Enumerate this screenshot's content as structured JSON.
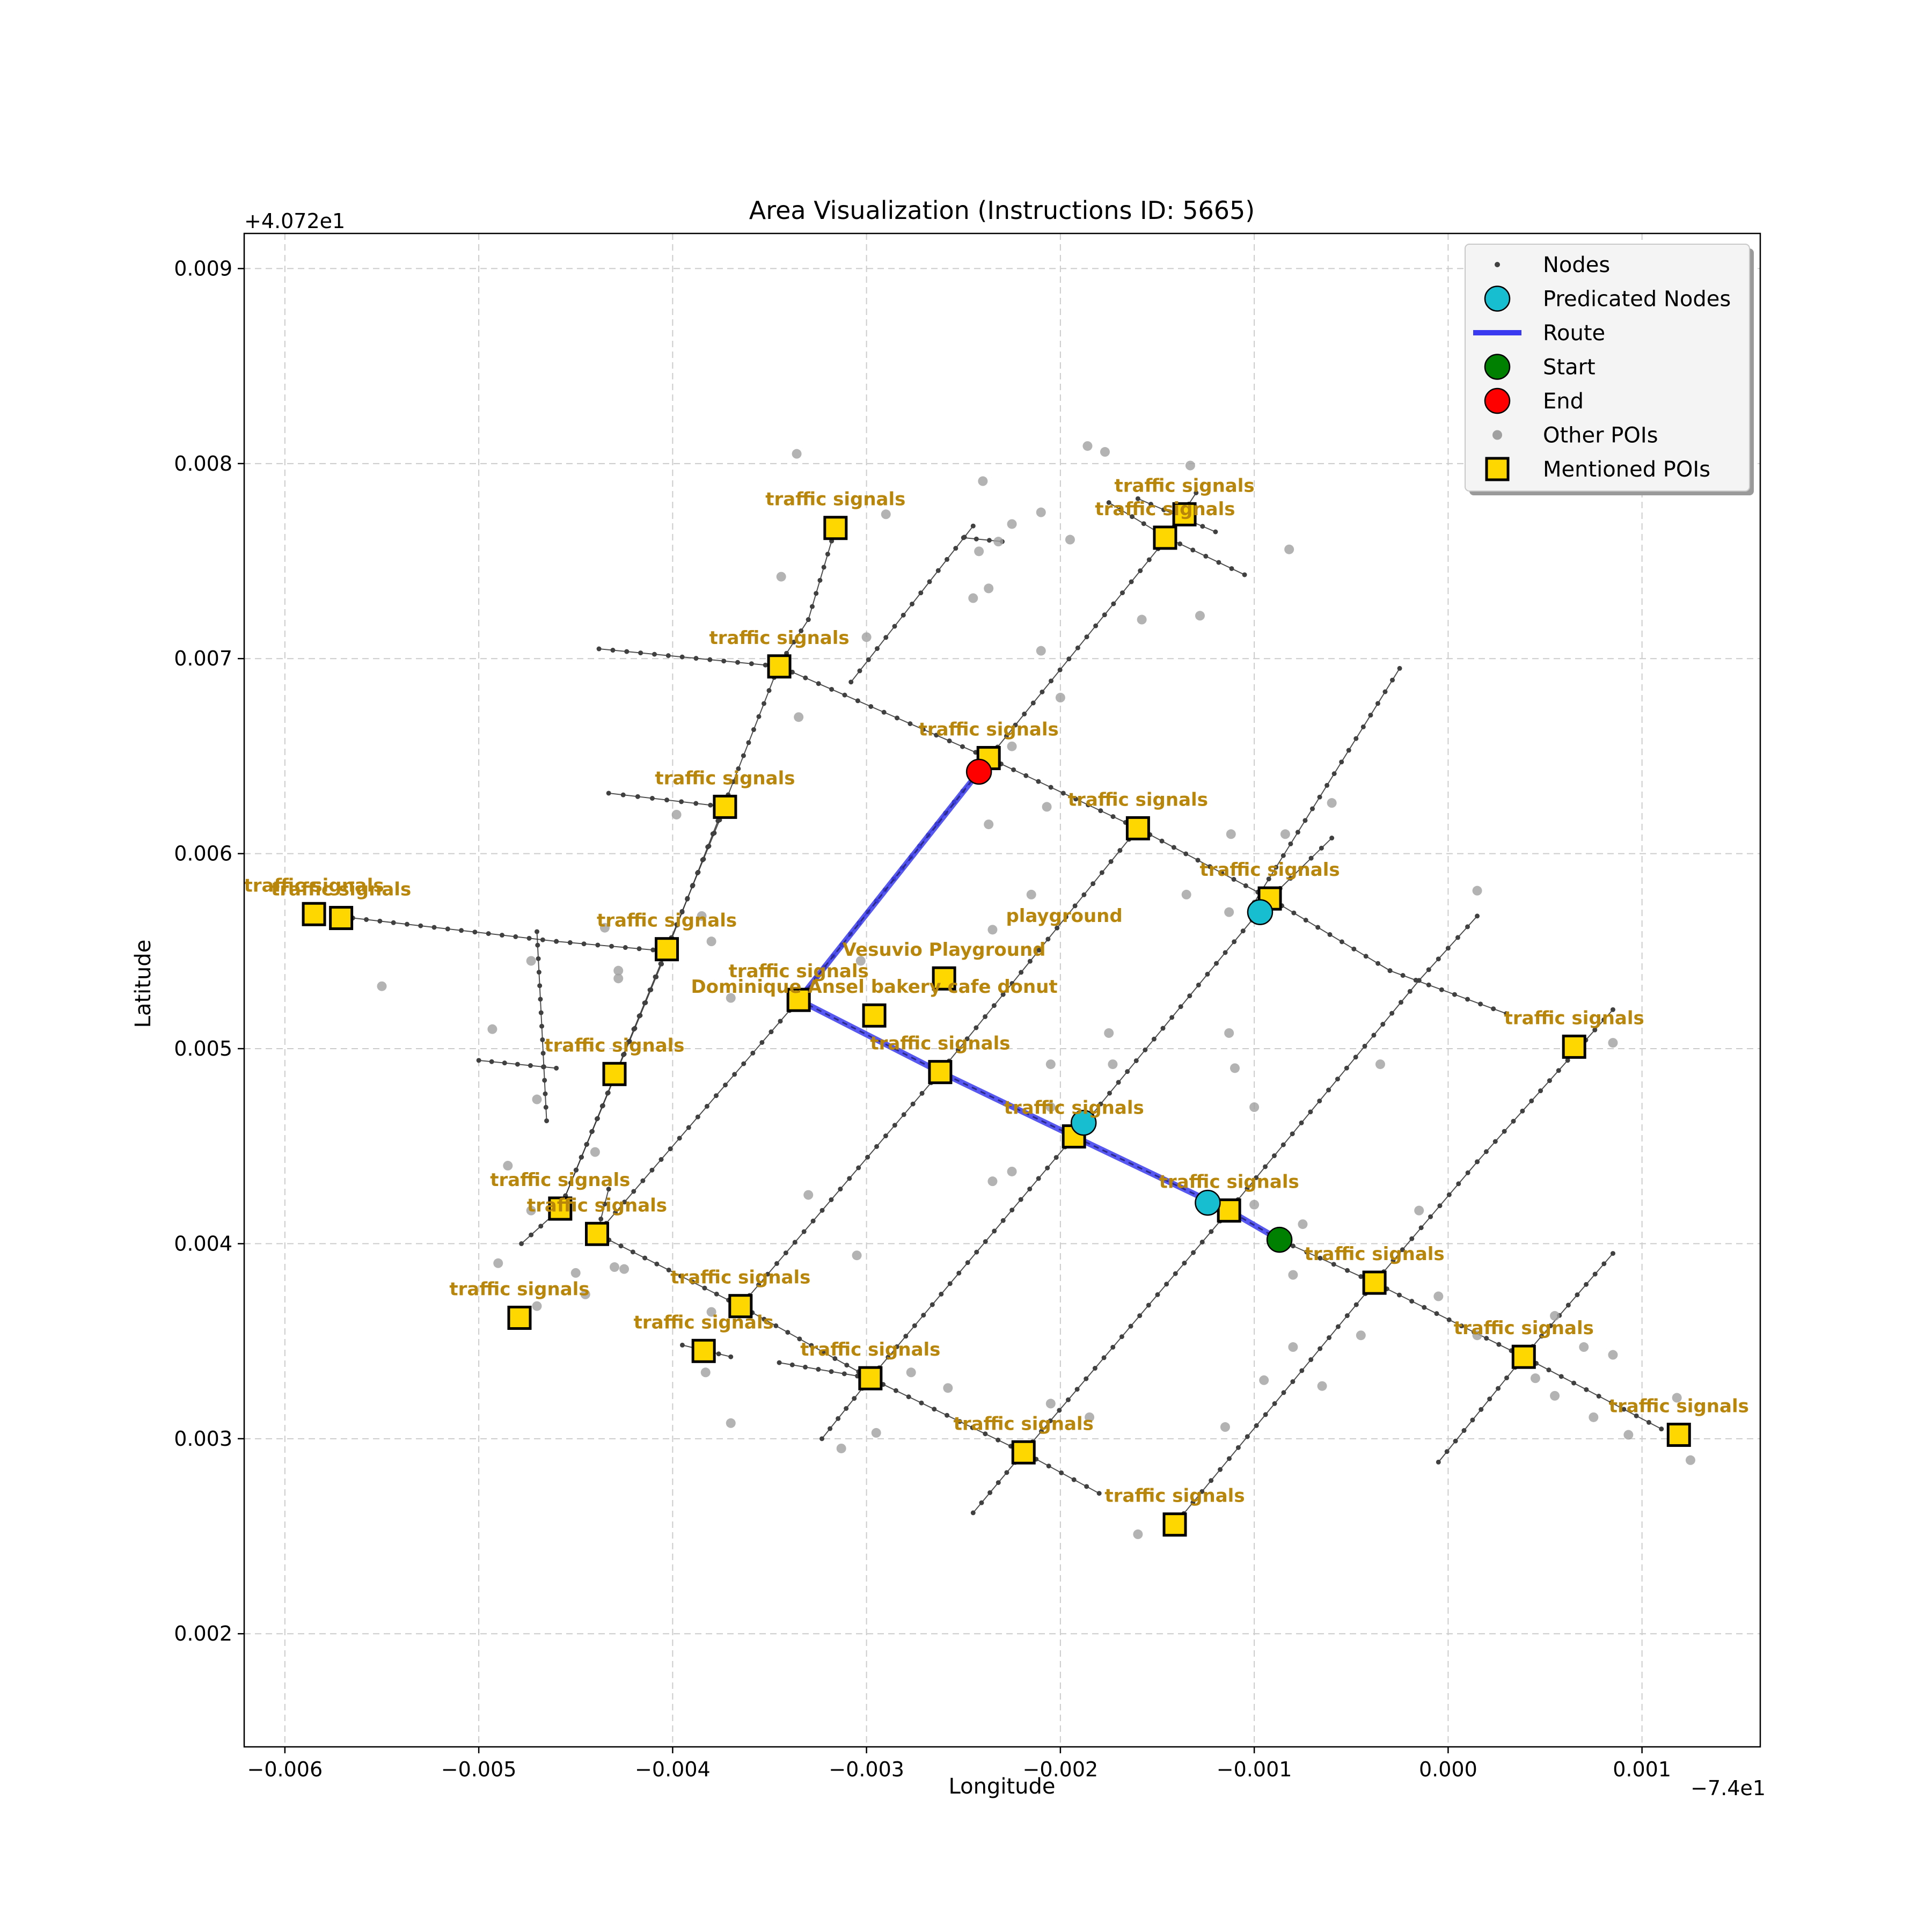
{
  "chart_data": {
    "type": "scatter",
    "title": "Area Visualization (Instructions ID: 5665)",
    "xlabel": "Longitude",
    "ylabel": "Latitude",
    "x_offset_label": "−7.4e1",
    "y_offset_label": "+4.072e1",
    "xlim": [
      -0.00621,
      0.00161
    ],
    "ylim": [
      0.00142,
      0.00918
    ],
    "x_ticks": [
      {
        "value": -0.006,
        "label": "−0.006"
      },
      {
        "value": -0.005,
        "label": "−0.005"
      },
      {
        "value": -0.004,
        "label": "−0.004"
      },
      {
        "value": -0.003,
        "label": "−0.003"
      },
      {
        "value": -0.002,
        "label": "−0.002"
      },
      {
        "value": -0.001,
        "label": "−0.001"
      },
      {
        "value": 0.0,
        "label": "0.000"
      },
      {
        "value": 0.001,
        "label": "0.001"
      }
    ],
    "y_ticks": [
      {
        "value": 0.002,
        "label": "0.002"
      },
      {
        "value": 0.003,
        "label": "0.003"
      },
      {
        "value": 0.004,
        "label": "0.004"
      },
      {
        "value": 0.005,
        "label": "0.005"
      },
      {
        "value": 0.006,
        "label": "0.006"
      },
      {
        "value": 0.007,
        "label": "0.007"
      },
      {
        "value": 0.008,
        "label": "0.008"
      },
      {
        "value": 0.009,
        "label": "0.009"
      }
    ],
    "grid": true,
    "legend_position": "top-right",
    "legend": [
      {
        "label": "Nodes",
        "marker": "small-dot",
        "color": "#404040"
      },
      {
        "label": "Predicated Nodes",
        "marker": "circle",
        "color": "#17becf"
      },
      {
        "label": "Route",
        "marker": "line",
        "color": "#3a3af0"
      },
      {
        "label": "Start",
        "marker": "circle",
        "color": "#008000"
      },
      {
        "label": "End",
        "marker": "circle",
        "color": "#ff0000"
      },
      {
        "label": "Other POIs",
        "marker": "dot",
        "color": "#a0a0a0"
      },
      {
        "label": "Mentioned POIs",
        "marker": "square",
        "color": "#ffd700"
      }
    ],
    "colors": {
      "nodes": "#404040",
      "edges": "#303030",
      "predicated": "#17becf",
      "route": "#3a3af0",
      "start": "#008000",
      "end": "#ff0000",
      "other_poi": "#a0a0a0",
      "mentioned_poi": "#ffd700",
      "poi_label": "#b8860b",
      "grid": "#cccccc"
    },
    "streets": [
      [
        [
          -0.00565,
          0.00567
        ],
        [
          -0.0046,
          0.00555
        ],
        [
          -0.00403,
          0.0055
        ]
      ],
      [
        [
          -0.00438,
          0.00705
        ],
        [
          -0.00345,
          0.00696
        ],
        [
          -0.00237,
          0.00649
        ],
        [
          -0.0016,
          0.00613
        ],
        [
          -0.00092,
          0.00577
        ],
        [
          -0.0003,
          0.0054
        ],
        [
          0.0003,
          0.00518
        ]
      ],
      [
        [
          -0.00433,
          0.00631
        ],
        [
          -0.00373,
          0.00624
        ]
      ],
      [
        [
          -0.005,
          0.00494
        ],
        [
          -0.0046,
          0.0049
        ]
      ],
      [
        [
          -0.00433,
          0.00428
        ],
        [
          -0.00439,
          0.00405
        ],
        [
          -0.00365,
          0.00368
        ],
        [
          -0.00298,
          0.00331
        ],
        [
          -0.00219,
          0.00293
        ],
        [
          -0.0018,
          0.00272
        ]
      ],
      [
        [
          -0.00345,
          0.00339
        ],
        [
          -0.00298,
          0.00331
        ]
      ],
      [
        [
          -0.00395,
          0.00348
        ],
        [
          -0.0037,
          0.00342
        ]
      ],
      [
        [
          -0.00087,
          0.00402
        ],
        [
          -0.00038,
          0.0038
        ],
        [
          0.00039,
          0.00342
        ],
        [
          0.0011,
          0.00305
        ]
      ],
      [
        [
          -0.00345,
          0.00697
        ],
        [
          -0.00403,
          0.0055
        ],
        [
          -0.00458,
          0.00418
        ],
        [
          -0.00478,
          0.004
        ]
      ],
      [
        [
          -0.00316,
          0.00767
        ],
        [
          -0.0033,
          0.0072
        ],
        [
          -0.00345,
          0.00697
        ]
      ],
      [
        [
          -0.00465,
          0.00463
        ],
        [
          -0.0047,
          0.0056
        ]
      ],
      [
        [
          -0.00373,
          0.00624
        ],
        [
          -0.0042,
          0.0051
        ],
        [
          -0.00458,
          0.00418
        ]
      ],
      [
        [
          -0.00308,
          0.00688
        ],
        [
          -0.00245,
          0.00768
        ]
      ],
      [
        [
          -0.00237,
          0.00649
        ],
        [
          -0.00145,
          0.00762
        ],
        [
          -0.0013,
          0.00785
        ]
      ],
      [
        [
          -0.0025,
          0.00762
        ],
        [
          -0.0023,
          0.0076
        ]
      ],
      [
        [
          -0.00175,
          0.0078
        ],
        [
          -0.00145,
          0.00762
        ],
        [
          -0.00105,
          0.00743
        ]
      ],
      [
        [
          -0.0016,
          0.00782
        ],
        [
          -0.0012,
          0.00765
        ]
      ],
      [
        [
          -0.00439,
          0.00405
        ],
        [
          -0.00335,
          0.00525
        ],
        [
          -0.00237,
          0.00649
        ]
      ],
      [
        [
          -0.00365,
          0.00368
        ],
        [
          -0.00262,
          0.00488
        ],
        [
          -0.0016,
          0.00613
        ]
      ],
      [
        [
          -0.00323,
          0.003
        ],
        [
          -0.00298,
          0.00331
        ],
        [
          -0.00193,
          0.00455
        ],
        [
          -0.00092,
          0.00577
        ],
        [
          -0.0006,
          0.00608
        ]
      ],
      [
        [
          -0.00245,
          0.00262
        ],
        [
          -0.00219,
          0.00293
        ],
        [
          -0.00113,
          0.00417
        ],
        [
          -0.00015,
          0.00535
        ],
        [
          0.00015,
          0.00568
        ]
      ],
      [
        [
          -0.00141,
          0.00256
        ],
        [
          -0.00038,
          0.0038
        ],
        [
          0.00015,
          0.00442
        ],
        [
          0.00085,
          0.0052
        ]
      ],
      [
        [
          -5e-05,
          0.00288
        ],
        [
          0.00039,
          0.00342
        ],
        [
          0.00085,
          0.00395
        ]
      ],
      [
        [
          -0.001,
          0.00575
        ],
        [
          -0.00025,
          0.00695
        ]
      ]
    ],
    "route": [
      [
        -0.00087,
        0.00402
      ],
      [
        -0.00113,
        0.00417
      ],
      [
        -0.00193,
        0.00455
      ],
      [
        -0.00262,
        0.00488
      ],
      [
        -0.00335,
        0.00525
      ],
      [
        -0.00242,
        0.00642
      ]
    ],
    "predicated_nodes": [
      [
        -0.00097,
        0.0057
      ],
      [
        -0.00188,
        0.00462
      ],
      [
        -0.00124,
        0.00421
      ]
    ],
    "start": [
      -0.00087,
      0.00402
    ],
    "end": [
      -0.00242,
      0.00642
    ],
    "other_pois": [
      [
        -0.00336,
        0.00805
      ],
      [
        -0.0024,
        0.00791
      ],
      [
        -0.00186,
        0.00809
      ],
      [
        -0.00177,
        0.00806
      ],
      [
        -0.00133,
        0.00799
      ],
      [
        -0.0021,
        0.00775
      ],
      [
        -0.00225,
        0.00769
      ],
      [
        -0.0029,
        0.00774
      ],
      [
        -0.00344,
        0.00742
      ],
      [
        -0.00232,
        0.0076
      ],
      [
        -0.00242,
        0.00755
      ],
      [
        -0.00245,
        0.00731
      ],
      [
        -0.00237,
        0.00736
      ],
      [
        -0.00195,
        0.00761
      ],
      [
        -0.00082,
        0.00756
      ],
      [
        -0.00128,
        0.00722
      ],
      [
        -0.00158,
        0.0072
      ],
      [
        -0.003,
        0.00711
      ],
      [
        -0.0021,
        0.00704
      ],
      [
        -0.002,
        0.0068
      ],
      [
        -0.00335,
        0.0067
      ],
      [
        -0.00225,
        0.00655
      ],
      [
        -0.00207,
        0.00624
      ],
      [
        -0.00237,
        0.00615
      ],
      [
        -0.00112,
        0.0061
      ],
      [
        -0.00084,
        0.0061
      ],
      [
        -0.0006,
        0.00626
      ],
      [
        -0.00398,
        0.0062
      ],
      [
        -0.00135,
        0.00579
      ],
      [
        -0.00215,
        0.00579
      ],
      [
        -0.00113,
        0.0057
      ],
      [
        0.00015,
        0.00581
      ],
      [
        -0.00385,
        0.00568
      ],
      [
        -0.00435,
        0.00562
      ],
      [
        -0.0038,
        0.00555
      ],
      [
        -0.00235,
        0.00561
      ],
      [
        -0.00473,
        0.00545
      ],
      [
        -0.00428,
        0.0054
      ],
      [
        -0.00428,
        0.00536
      ],
      [
        -0.0055,
        0.00532
      ],
      [
        -0.0037,
        0.00526
      ],
      [
        -0.00303,
        0.00545
      ],
      [
        -0.00493,
        0.0051
      ],
      [
        -0.00113,
        0.00508
      ],
      [
        -0.00175,
        0.00508
      ],
      [
        -0.00035,
        0.00492
      ],
      [
        -0.00205,
        0.00492
      ],
      [
        -0.0011,
        0.0049
      ],
      [
        -0.00173,
        0.00492
      ],
      [
        0.00085,
        0.00503
      ],
      [
        -0.0047,
        0.00474
      ],
      [
        -0.001,
        0.0047
      ],
      [
        -0.00205,
        0.0047
      ],
      [
        -0.00485,
        0.0044
      ],
      [
        -0.0044,
        0.00447
      ],
      [
        -0.00235,
        0.00432
      ],
      [
        -0.00225,
        0.00437
      ],
      [
        -0.0033,
        0.00425
      ],
      [
        -0.001,
        0.0042
      ],
      [
        -0.00015,
        0.00417
      ],
      [
        -0.00473,
        0.00417
      ],
      [
        -0.00075,
        0.0041
      ],
      [
        -0.0049,
        0.0039
      ],
      [
        -0.00425,
        0.00387
      ],
      [
        -0.0043,
        0.00388
      ],
      [
        -0.00305,
        0.00394
      ],
      [
        -0.0045,
        0.00385
      ],
      [
        -0.0008,
        0.00384
      ],
      [
        -5e-05,
        0.00373
      ],
      [
        -0.00445,
        0.00374
      ],
      [
        -0.0047,
        0.00368
      ],
      [
        -0.0038,
        0.00365
      ],
      [
        -0.00045,
        0.00353
      ],
      [
        0.00015,
        0.00353
      ],
      [
        0.00055,
        0.00363
      ],
      [
        0.0007,
        0.00347
      ],
      [
        0.00085,
        0.00343
      ],
      [
        -0.0008,
        0.00347
      ],
      [
        -0.00383,
        0.00334
      ],
      [
        -0.00095,
        0.0033
      ],
      [
        -0.00065,
        0.00327
      ],
      [
        0.00045,
        0.00331
      ],
      [
        0.00055,
        0.00322
      ],
      [
        -0.00277,
        0.00334
      ],
      [
        -0.00258,
        0.00326
      ],
      [
        -0.0037,
        0.00308
      ],
      [
        -0.00295,
        0.00303
      ],
      [
        -0.00313,
        0.00295
      ],
      [
        -0.00115,
        0.00306
      ],
      [
        -0.00205,
        0.00318
      ],
      [
        -0.00185,
        0.00311
      ],
      [
        0.00075,
        0.00311
      ],
      [
        0.00093,
        0.00302
      ],
      [
        0.00118,
        0.00321
      ],
      [
        0.00125,
        0.00289
      ],
      [
        -0.0016,
        0.00251
      ]
    ],
    "mentioned_pois": [
      {
        "x": -0.00316,
        "y": 0.00767,
        "label": "traffic signals"
      },
      {
        "x": -0.00136,
        "y": 0.00774,
        "label": "traffic signals"
      },
      {
        "x": -0.00146,
        "y": 0.00762,
        "label": "traffic signals"
      },
      {
        "x": -0.00345,
        "y": 0.00696,
        "label": "traffic signals"
      },
      {
        "x": -0.00237,
        "y": 0.00649,
        "label": "traffic signals"
      },
      {
        "x": -0.00373,
        "y": 0.00624,
        "label": "traffic signals"
      },
      {
        "x": -0.0016,
        "y": 0.00613,
        "label": "traffic signals"
      },
      {
        "x": -0.00092,
        "y": 0.00577,
        "label": "traffic signals"
      },
      {
        "x": -0.00585,
        "y": 0.00569,
        "label": "traffic signals"
      },
      {
        "x": -0.00571,
        "y": 0.00567,
        "label": "traffic signals"
      },
      {
        "x": -0.00403,
        "y": 0.00551,
        "label": "traffic signals"
      },
      {
        "x": -0.0026,
        "y": 0.00536,
        "label": "Vesuvio Playground"
      },
      {
        "x": -0.00335,
        "y": 0.00525,
        "label": "traffic signals"
      },
      {
        "x": -0.00296,
        "y": 0.00517,
        "label": "Dominique Ansel bakery cafe donut"
      },
      {
        "x": 0.00065,
        "y": 0.00501,
        "label": "traffic signals"
      },
      {
        "x": -0.0043,
        "y": 0.00487,
        "label": "traffic signals"
      },
      {
        "x": -0.00262,
        "y": 0.00488,
        "label": "traffic signals"
      },
      {
        "x": -0.00193,
        "y": 0.00455,
        "label": "traffic signals"
      },
      {
        "x": -0.00113,
        "y": 0.00417,
        "label": "traffic signals"
      },
      {
        "x": -0.00458,
        "y": 0.00418,
        "label": "traffic signals"
      },
      {
        "x": -0.00439,
        "y": 0.00405,
        "label": "traffic signals"
      },
      {
        "x": -0.00038,
        "y": 0.0038,
        "label": "traffic signals"
      },
      {
        "x": -0.00479,
        "y": 0.00362,
        "label": "traffic signals"
      },
      {
        "x": -0.00365,
        "y": 0.00368,
        "label": "traffic signals"
      },
      {
        "x": -0.00384,
        "y": 0.00345,
        "label": "traffic signals"
      },
      {
        "x": 0.00039,
        "y": 0.00342,
        "label": "traffic signals"
      },
      {
        "x": -0.00298,
        "y": 0.00331,
        "label": "traffic signals"
      },
      {
        "x": 0.00119,
        "y": 0.00302,
        "label": "traffic signals"
      },
      {
        "x": -0.00219,
        "y": 0.00293,
        "label": "traffic signals"
      },
      {
        "x": -0.00141,
        "y": 0.00256,
        "label": "traffic signals"
      }
    ],
    "free_labels": [
      {
        "x": -0.00198,
        "y": 0.00565,
        "label": "playground"
      }
    ]
  }
}
